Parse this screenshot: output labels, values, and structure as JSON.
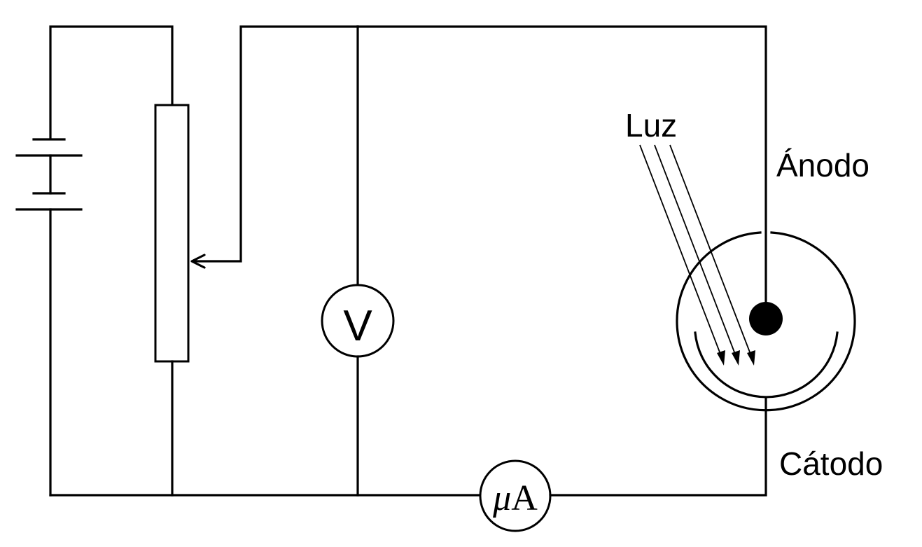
{
  "labels": {
    "light": "Luz",
    "anode": "Ánodo",
    "cathode": "Cátodo",
    "voltmeter": "V",
    "microammeter_mu": "μ",
    "microammeter_a": "A"
  }
}
